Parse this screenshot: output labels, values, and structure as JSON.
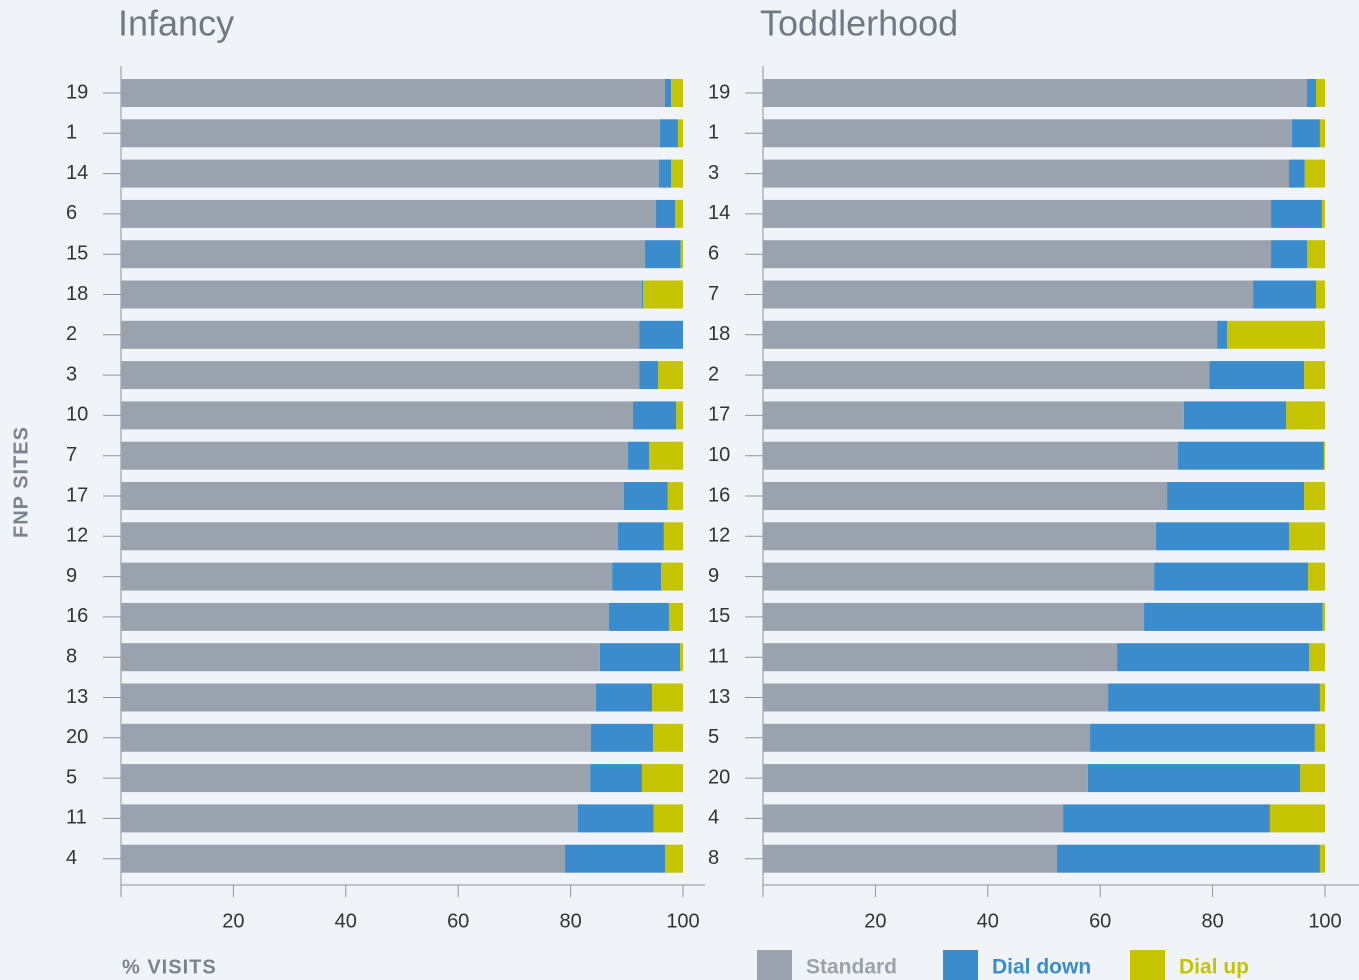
{
  "chart_data": [
    {
      "type": "bar",
      "orientation": "horizontal",
      "stacked": true,
      "title": "Infancy",
      "ylabel": "FNP SITES",
      "xlabel": "% VISITS",
      "categories": [
        "19",
        "1",
        "14",
        "6",
        "15",
        "18",
        "2",
        "3",
        "10",
        "7",
        "17",
        "12",
        "9",
        "16",
        "8",
        "13",
        "20",
        "5",
        "11",
        "4"
      ],
      "series": [
        {
          "name": "Standard",
          "color": "#9aa3ad",
          "values": [
            96.8,
            95.9,
            95.7,
            95.2,
            93.2,
            92.7,
            92.2,
            92.2,
            91.1,
            90.2,
            89.5,
            88.4,
            87.4,
            86.8,
            85.2,
            84.5,
            83.6,
            83.5,
            81.3,
            79.0
          ]
        },
        {
          "name": "Dial down",
          "color": "#3a8ccc",
          "values": [
            1.1,
            3.2,
            2.2,
            3.4,
            6.4,
            0.2,
            7.8,
            3.4,
            7.7,
            3.8,
            7.8,
            8.2,
            8.7,
            10.7,
            14.3,
            10.0,
            11.1,
            9.2,
            13.5,
            17.8
          ]
        },
        {
          "name": "Dial up",
          "color": "#c4c400",
          "values": [
            2.1,
            0.9,
            2.1,
            1.4,
            0.4,
            7.1,
            0,
            4.4,
            1.2,
            6.0,
            2.7,
            3.4,
            3.9,
            2.5,
            0.5,
            5.5,
            5.3,
            7.3,
            5.2,
            3.2
          ]
        }
      ],
      "xlim": [
        0,
        100
      ],
      "xticks": [
        20,
        40,
        60,
        80,
        100
      ]
    },
    {
      "type": "bar",
      "orientation": "horizontal",
      "stacked": true,
      "title": "Toddlerhood",
      "categories": [
        "19",
        "1",
        "3",
        "14",
        "6",
        "7",
        "18",
        "2",
        "17",
        "10",
        "16",
        "12",
        "9",
        "15",
        "11",
        "13",
        "5",
        "20",
        "4",
        "8"
      ],
      "series": [
        {
          "name": "Standard",
          "color": "#9aa3ad",
          "values": [
            96.8,
            94.1,
            93.6,
            90.4,
            90.4,
            87.2,
            80.8,
            79.4,
            74.9,
            73.8,
            71.9,
            69.9,
            69.6,
            67.8,
            63.0,
            61.4,
            58.2,
            57.8,
            53.4,
            52.3
          ]
        },
        {
          "name": "Dial down",
          "color": "#3a8ccc",
          "values": [
            1.6,
            5.0,
            2.8,
            9.1,
            6.4,
            11.2,
            1.8,
            16.9,
            18.2,
            26.0,
            24.4,
            23.7,
            27.4,
            31.8,
            34.2,
            37.7,
            40.0,
            37.8,
            36.8,
            46.8
          ]
        },
        {
          "name": "Dial up",
          "color": "#c4c400",
          "values": [
            1.6,
            0.9,
            3.6,
            0.5,
            3.2,
            1.6,
            17.4,
            3.7,
            6.9,
            0.2,
            3.7,
            6.4,
            3.0,
            0.4,
            2.8,
            0.9,
            1.8,
            4.4,
            9.8,
            0.9
          ]
        }
      ],
      "xlim": [
        0,
        100
      ],
      "xticks": [
        20,
        40,
        60,
        80,
        100
      ],
      "legend": "bottom"
    }
  ]
}
